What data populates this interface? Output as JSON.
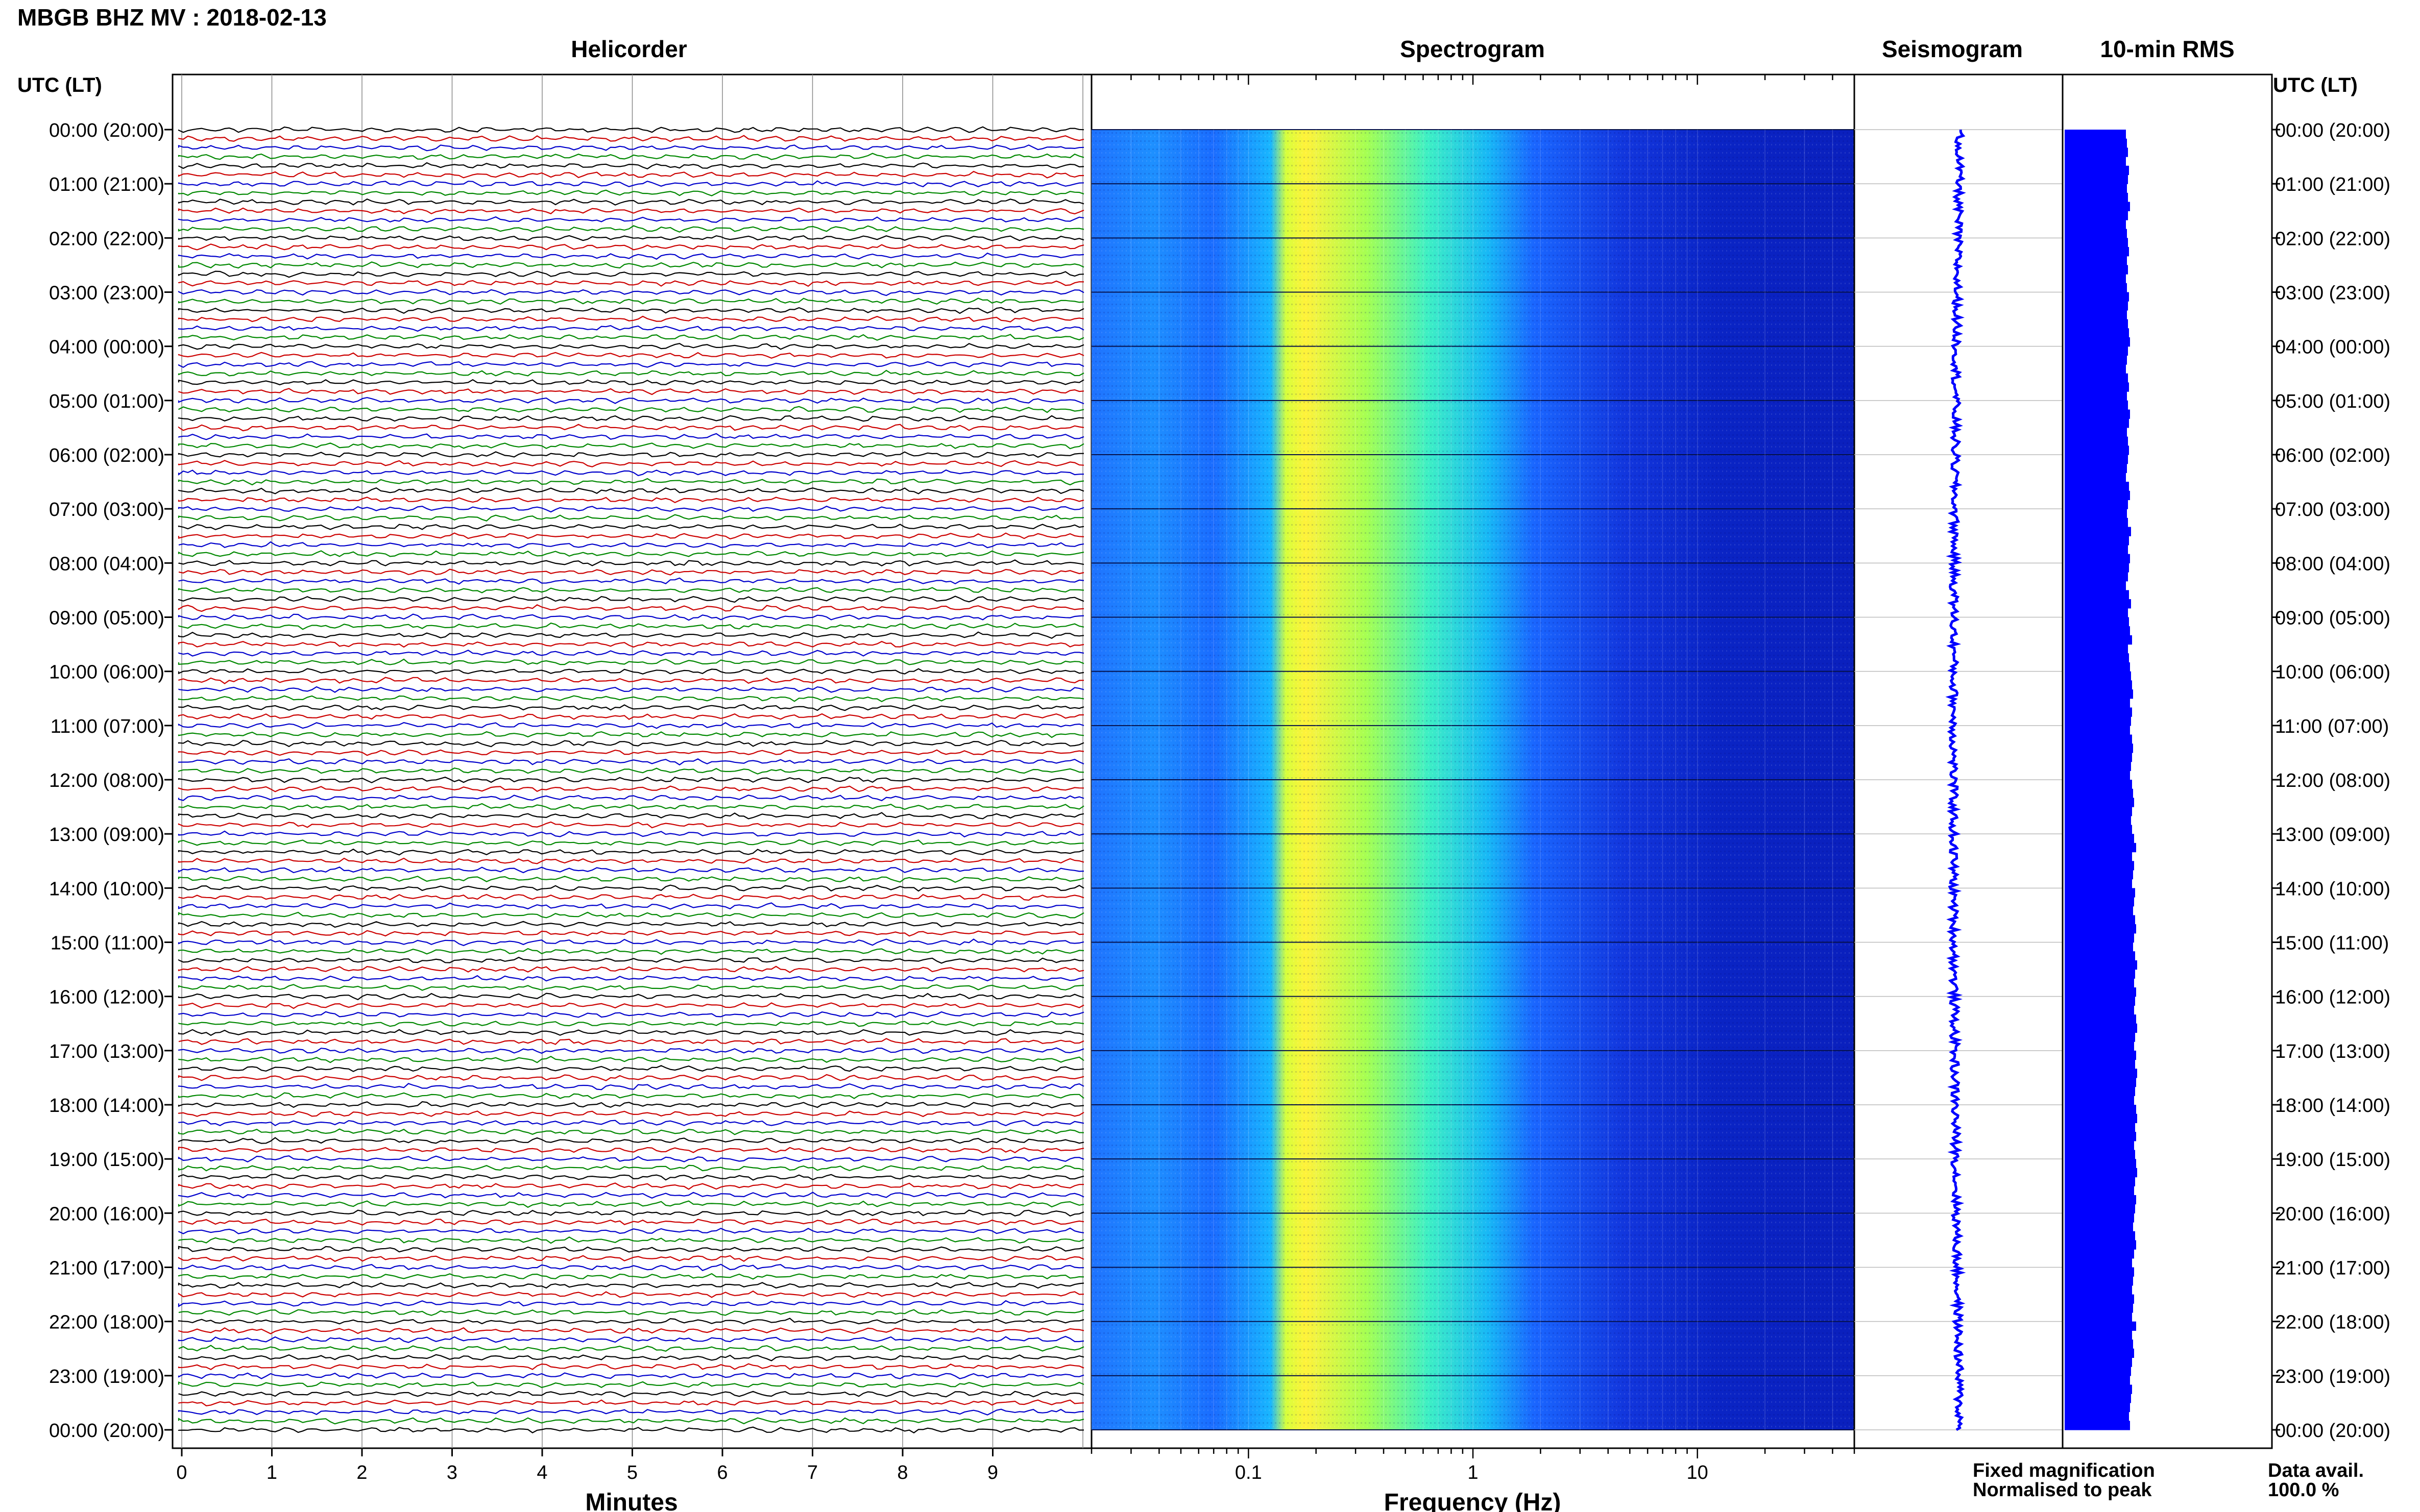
{
  "header": {
    "title": "MBGB BHZ MV : 2018-02-13"
  },
  "panels": {
    "helicorder": "Helicorder",
    "spectrogram": "Spectrogram",
    "seismogram": "Seismogram",
    "rms": "10-min RMS"
  },
  "axis_left_header": "UTC (LT)",
  "axis_right_header": "UTC (LT)",
  "time_labels": [
    "00:00 (20:00)",
    "01:00 (21:00)",
    "02:00 (22:00)",
    "03:00 (23:00)",
    "04:00 (00:00)",
    "05:00 (01:00)",
    "06:00 (02:00)",
    "07:00 (03:00)",
    "08:00 (04:00)",
    "09:00 (05:00)",
    "10:00 (06:00)",
    "11:00 (07:00)",
    "12:00 (08:00)",
    "13:00 (09:00)",
    "14:00 (10:00)",
    "15:00 (11:00)",
    "16:00 (12:00)",
    "17:00 (13:00)",
    "18:00 (14:00)",
    "19:00 (15:00)",
    "20:00 (16:00)",
    "21:00 (17:00)",
    "22:00 (18:00)",
    "23:00 (19:00)",
    "00:00 (20:00)"
  ],
  "helicorder": {
    "xlabel": "Minutes",
    "xticks": [
      "0",
      "1",
      "2",
      "3",
      "4",
      "5",
      "6",
      "7",
      "8",
      "9"
    ],
    "trace_colors": [
      "#000000",
      "#cc0000",
      "#0000cc",
      "#008800"
    ],
    "traces_per_hour": 6
  },
  "spectrogram": {
    "xlabel": "Frequency (Hz)",
    "xticks": [
      "0.1",
      "1",
      "10"
    ],
    "xlim": [
      0.02,
      50
    ],
    "scale": "log"
  },
  "legend": {
    "fixed": "Fixed magnification",
    "normalised": "Normalised to peak",
    "fixed_color": "#0000ff",
    "normalised_color": "#ff0000"
  },
  "data_avail": {
    "label": "Data avail.",
    "value": "100.0 %"
  },
  "chart_data": {
    "type": "helicorder-spectrogram",
    "date": "2018-02-13",
    "station": "MBGB BHZ MV",
    "rms_color": "#0000ff",
    "rms_10min": [
      0.6,
      0.61,
      0.62,
      0.6,
      0.63,
      0.62,
      0.61,
      0.62,
      0.64,
      0.62,
      0.6,
      0.61,
      0.62,
      0.63,
      0.61,
      0.62,
      0.6,
      0.61,
      0.63,
      0.62,
      0.61,
      0.62,
      0.63,
      0.64,
      0.62,
      0.61,
      0.6,
      0.62,
      0.63,
      0.61,
      0.62,
      0.64,
      0.63,
      0.61,
      0.62,
      0.63,
      0.62,
      0.61,
      0.6,
      0.63,
      0.64,
      0.62,
      0.61,
      0.62,
      0.65,
      0.63,
      0.62,
      0.64,
      0.63,
      0.62,
      0.6,
      0.63,
      0.65,
      0.62,
      0.63,
      0.64,
      0.66,
      0.62,
      0.63,
      0.64,
      0.65,
      0.66,
      0.67,
      0.64,
      0.66,
      0.65,
      0.64,
      0.66,
      0.67,
      0.66,
      0.65,
      0.64,
      0.66,
      0.67,
      0.68,
      0.66,
      0.65,
      0.66,
      0.68,
      0.7,
      0.66,
      0.68,
      0.67,
      0.66,
      0.69,
      0.68,
      0.67,
      0.69,
      0.7,
      0.68,
      0.67,
      0.69,
      0.71,
      0.69,
      0.68,
      0.7,
      0.69,
      0.68,
      0.7,
      0.71,
      0.69,
      0.68,
      0.7,
      0.69,
      0.71,
      0.7,
      0.69,
      0.68,
      0.7,
      0.71,
      0.69,
      0.7,
      0.68,
      0.69,
      0.7,
      0.71,
      0.69,
      0.68,
      0.7,
      0.69,
      0.68,
      0.67,
      0.69,
      0.7,
      0.68,
      0.66,
      0.68,
      0.67,
      0.66,
      0.68,
      0.67,
      0.66,
      0.7,
      0.66,
      0.67,
      0.68,
      0.66,
      0.65,
      0.64,
      0.66,
      0.65,
      0.64,
      0.63,
      0.64
    ]
  }
}
